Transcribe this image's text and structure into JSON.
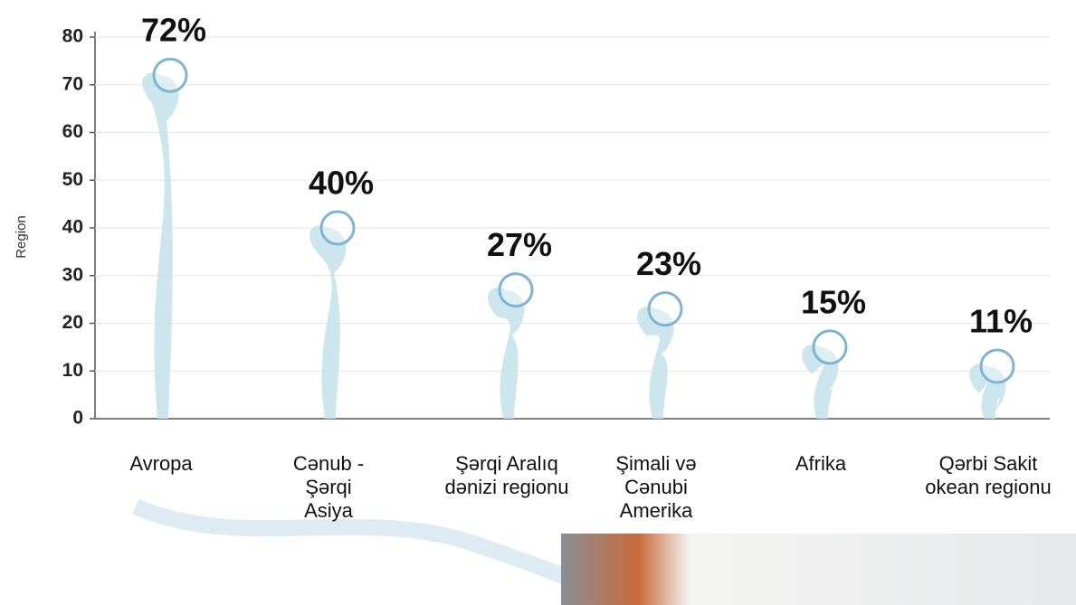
{
  "chart_data": {
    "type": "bubble-smoke",
    "y_label": "Region",
    "categories": [
      "Avropa",
      "Cənub -\nŞərqi\nAsiya",
      "Şərqi Aralıq\ndənizi regionu",
      "Şimali və\nCənubi\nAmerika",
      "Afrika",
      "Qərbi Sakit\nokean regionu"
    ],
    "values": [
      72,
      40,
      27,
      23,
      15,
      11
    ],
    "value_labels": [
      "72%",
      "40%",
      "27%",
      "23%",
      "15%",
      "11%"
    ],
    "color": "#7fb3d3",
    "ylim": [
      0,
      80
    ],
    "yticks": [
      0,
      10,
      20,
      30,
      40,
      50,
      60,
      70,
      80
    ],
    "grid": true
  }
}
